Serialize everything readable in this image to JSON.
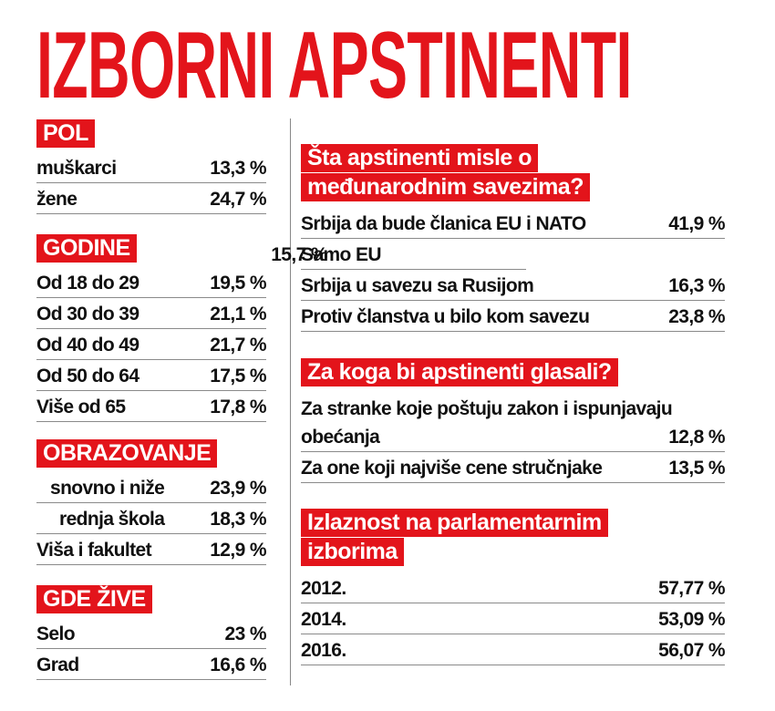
{
  "title": "IZBORNI APSTINENTI",
  "left_sections": [
    {
      "heading": "POL",
      "rows": [
        {
          "label": "muškarci",
          "value": "13,3 %"
        },
        {
          "label": "žene",
          "value": "24,7 %"
        }
      ]
    },
    {
      "heading": "GODINE",
      "rows": [
        {
          "label": "Od 18 do 29",
          "value": "19,5 %"
        },
        {
          "label": "Od 30 do 39",
          "value": "21,1 %"
        },
        {
          "label": "Od 40 do 49",
          "value": "21,7 %"
        },
        {
          "label": "Od 50 do 64",
          "value": "17,5 %"
        },
        {
          "label": "Više od 65",
          "value": "17,8 %"
        }
      ]
    },
    {
      "heading": "OBRAZOVANJE",
      "rows": [
        {
          "label": "snovno i niže",
          "value": "23,9 %"
        },
        {
          "label": "rednja škola",
          "value": "18,3 %"
        },
        {
          "label": "Viša i fakultet",
          "value": "12,9 %"
        }
      ]
    },
    {
      "heading": "GDE ŽIVE",
      "rows": [
        {
          "label": "Selo",
          "value": "23 %"
        },
        {
          "label": "Grad",
          "value": "16,6 %"
        }
      ]
    }
  ],
  "right_sections": [
    {
      "heading_lines": [
        "Šta apstinenti misle o",
        "međunarodnim savezima?"
      ],
      "rows": [
        {
          "label_lines": [
            "Srbija da bude članica EU i NATO"
          ],
          "value": "41,9 %"
        },
        {
          "label_lines": [
            "Samo EU"
          ],
          "value": "15,7 %"
        },
        {
          "label_lines": [
            "Srbija u savezu sa Rusijom"
          ],
          "value": "16,3 %"
        },
        {
          "label_lines": [
            "Protiv članstva u bilo kom savezu"
          ],
          "value": "23,8 %"
        }
      ]
    },
    {
      "heading_lines": [
        "Za koga bi apstinenti glasali?"
      ],
      "rows": [
        {
          "label_lines": [
            "Za stranke koje poštuju zakon i ispunjavaju",
            "obećanja"
          ],
          "value": "12,8 %"
        },
        {
          "label_lines": [
            "Za one koji najviše cene stručnjake"
          ],
          "value": "13,5 %"
        }
      ]
    },
    {
      "heading_lines": [
        "Izlaznost na parlamentarnim",
        "izborima"
      ],
      "rows": [
        {
          "label_lines": [
            "2012."
          ],
          "value": "57,77 %"
        },
        {
          "label_lines": [
            "2014."
          ],
          "value": "53,09 %"
        },
        {
          "label_lines": [
            "2016."
          ],
          "value": "56,07 %"
        }
      ]
    }
  ]
}
